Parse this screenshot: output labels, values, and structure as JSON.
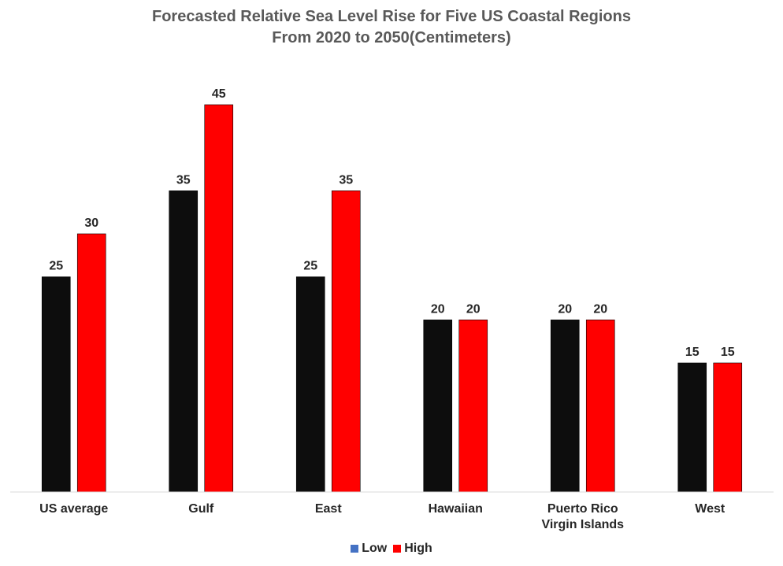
{
  "chart_data": {
    "type": "bar",
    "title_line1": "Forecasted Relative Sea Level Rise for Five US Coastal Regions",
    "title_line2": "From 2020 to 2050(Centimeters)",
    "categories": [
      "US average",
      "Gulf",
      "East",
      "Hawaiian",
      "Puerto Rico\nVirgin Islands",
      "West"
    ],
    "series": [
      {
        "name": "Low",
        "values": [
          25,
          35,
          25,
          20,
          20,
          15
        ],
        "color": "#0d0d0d",
        "legend_color": "#4472c4"
      },
      {
        "name": "High",
        "values": [
          30,
          45,
          35,
          20,
          20,
          15
        ],
        "color": "#ff0000",
        "legend_color": "#ff0000"
      }
    ],
    "ylim": [
      0,
      45
    ],
    "grid": false,
    "legend_position": "bottom",
    "data_labels": true
  }
}
